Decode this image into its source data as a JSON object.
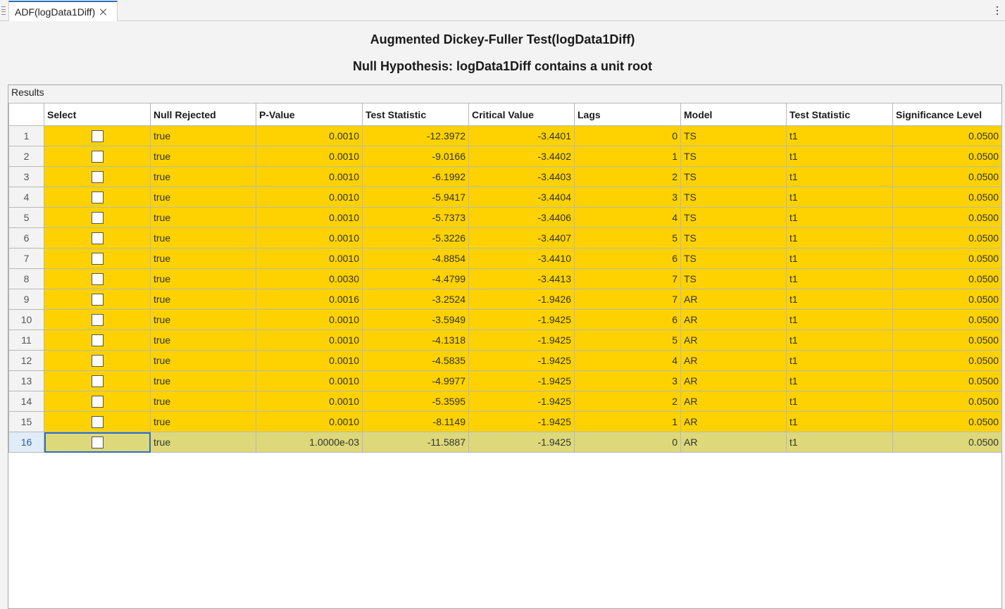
{
  "tab": {
    "label": "ADF(logData1Diff)"
  },
  "heading": {
    "title": "Augmented Dickey-Fuller Test(logData1Diff)",
    "subtitle": "Null Hypothesis: logData1Diff contains a unit root"
  },
  "panel": {
    "title": "Results"
  },
  "table": {
    "columns": [
      "Select",
      "Null Rejected",
      "P-Value",
      "Test Statistic",
      "Critical Value",
      "Lags",
      "Model",
      "Test Statistic",
      "Significance Level"
    ],
    "rows": [
      {
        "num": "1",
        "null_rejected": "true",
        "p_value": "0.0010",
        "test_stat": "-12.3972",
        "critical": "-3.4401",
        "lags": "0",
        "model": "TS",
        "stat_name": "t1",
        "sig": "0.0500"
      },
      {
        "num": "2",
        "null_rejected": "true",
        "p_value": "0.0010",
        "test_stat": "-9.0166",
        "critical": "-3.4402",
        "lags": "1",
        "model": "TS",
        "stat_name": "t1",
        "sig": "0.0500"
      },
      {
        "num": "3",
        "null_rejected": "true",
        "p_value": "0.0010",
        "test_stat": "-6.1992",
        "critical": "-3.4403",
        "lags": "2",
        "model": "TS",
        "stat_name": "t1",
        "sig": "0.0500"
      },
      {
        "num": "4",
        "null_rejected": "true",
        "p_value": "0.0010",
        "test_stat": "-5.9417",
        "critical": "-3.4404",
        "lags": "3",
        "model": "TS",
        "stat_name": "t1",
        "sig": "0.0500"
      },
      {
        "num": "5",
        "null_rejected": "true",
        "p_value": "0.0010",
        "test_stat": "-5.7373",
        "critical": "-3.4406",
        "lags": "4",
        "model": "TS",
        "stat_name": "t1",
        "sig": "0.0500"
      },
      {
        "num": "6",
        "null_rejected": "true",
        "p_value": "0.0010",
        "test_stat": "-5.3226",
        "critical": "-3.4407",
        "lags": "5",
        "model": "TS",
        "stat_name": "t1",
        "sig": "0.0500"
      },
      {
        "num": "7",
        "null_rejected": "true",
        "p_value": "0.0010",
        "test_stat": "-4.8854",
        "critical": "-3.4410",
        "lags": "6",
        "model": "TS",
        "stat_name": "t1",
        "sig": "0.0500"
      },
      {
        "num": "8",
        "null_rejected": "true",
        "p_value": "0.0030",
        "test_stat": "-4.4799",
        "critical": "-3.4413",
        "lags": "7",
        "model": "TS",
        "stat_name": "t1",
        "sig": "0.0500"
      },
      {
        "num": "9",
        "null_rejected": "true",
        "p_value": "0.0016",
        "test_stat": "-3.2524",
        "critical": "-1.9426",
        "lags": "7",
        "model": "AR",
        "stat_name": "t1",
        "sig": "0.0500"
      },
      {
        "num": "10",
        "null_rejected": "true",
        "p_value": "0.0010",
        "test_stat": "-3.5949",
        "critical": "-1.9425",
        "lags": "6",
        "model": "AR",
        "stat_name": "t1",
        "sig": "0.0500"
      },
      {
        "num": "11",
        "null_rejected": "true",
        "p_value": "0.0010",
        "test_stat": "-4.1318",
        "critical": "-1.9425",
        "lags": "5",
        "model": "AR",
        "stat_name": "t1",
        "sig": "0.0500"
      },
      {
        "num": "12",
        "null_rejected": "true",
        "p_value": "0.0010",
        "test_stat": "-4.5835",
        "critical": "-1.9425",
        "lags": "4",
        "model": "AR",
        "stat_name": "t1",
        "sig": "0.0500"
      },
      {
        "num": "13",
        "null_rejected": "true",
        "p_value": "0.0010",
        "test_stat": "-4.9977",
        "critical": "-1.9425",
        "lags": "3",
        "model": "AR",
        "stat_name": "t1",
        "sig": "0.0500"
      },
      {
        "num": "14",
        "null_rejected": "true",
        "p_value": "0.0010",
        "test_stat": "-5.3595",
        "critical": "-1.9425",
        "lags": "2",
        "model": "AR",
        "stat_name": "t1",
        "sig": "0.0500"
      },
      {
        "num": "15",
        "null_rejected": "true",
        "p_value": "0.0010",
        "test_stat": "-8.1149",
        "critical": "-1.9425",
        "lags": "1",
        "model": "AR",
        "stat_name": "t1",
        "sig": "0.0500"
      },
      {
        "num": "16",
        "null_rejected": "true",
        "p_value": "1.0000e-03",
        "test_stat": "-11.5887",
        "critical": "-1.9425",
        "lags": "0",
        "model": "AR",
        "stat_name": "t1",
        "sig": "0.0500"
      }
    ],
    "selected_row": 16
  },
  "colors": {
    "highlight": "#fdd200",
    "selected_row": "#ddd87a",
    "accent": "#2e6fb7"
  }
}
